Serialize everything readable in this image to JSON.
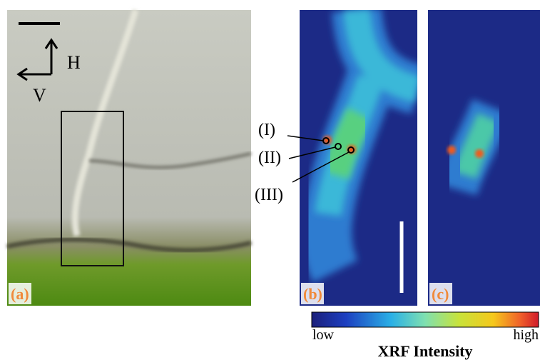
{
  "panel_a": {
    "label": "(a)",
    "directions": {
      "horizontal": "H",
      "vertical": "V"
    }
  },
  "panel_b": {
    "label": "(b)",
    "points": [
      "(I)",
      "(II)",
      "(III)"
    ]
  },
  "panel_c": {
    "label": "(c)"
  },
  "colorbar": {
    "low": "low",
    "high": "high",
    "title": "XRF Intensity"
  }
}
